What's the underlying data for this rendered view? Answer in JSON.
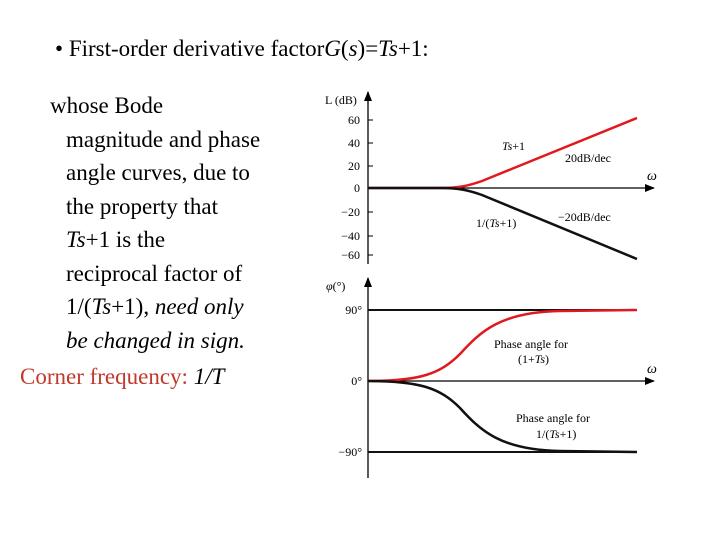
{
  "title": {
    "bullet": "•",
    "pre": "First-order derivative factor",
    "G": "G",
    "lp": "(",
    "s": "s",
    "rp": ")",
    "eq": "=",
    "Ts": "Ts",
    "tail": "+1:"
  },
  "body": {
    "l1": "whose Bode",
    "l2": "magnitude and phase",
    "l3": "angle curves, due to",
    "l4": "the property that",
    "l5_ts": "Ts",
    "l5_rest": "+1 is the",
    "l6": "reciprocal factor of",
    "l7_a": "1/(",
    "l7_ts": "Ts",
    "l7_b": "+1), ",
    "l7_c": "need only",
    "l8": "be changed in sign."
  },
  "corner": {
    "label": "Corner frequency:",
    "value": "1/T"
  },
  "mag_plot": {
    "axis_label": "L (dB)",
    "ticks": [
      "60",
      "40",
      "20",
      "0",
      "−20",
      "−40",
      "−60"
    ],
    "omega": "ω",
    "ts1_label": "Ts+1",
    "slope_up": "20dB/dec",
    "inv_label": "1/(Ts+1)",
    "slope_down": "−20dB/dec"
  },
  "phase_plot": {
    "axis_label": "φ(°)",
    "ticks": [
      "90°",
      "0°",
      "−90°"
    ],
    "omega": "ω",
    "lead_l1": "Phase angle for",
    "lead_l2": "(1+Ts)",
    "lag_l1": "Phase angle for",
    "lag_l2": "1/(Ts+1)"
  },
  "colors": {
    "accent_red": "#c0392b",
    "curve_red": "#e0191e",
    "curve_black": "#111111"
  }
}
